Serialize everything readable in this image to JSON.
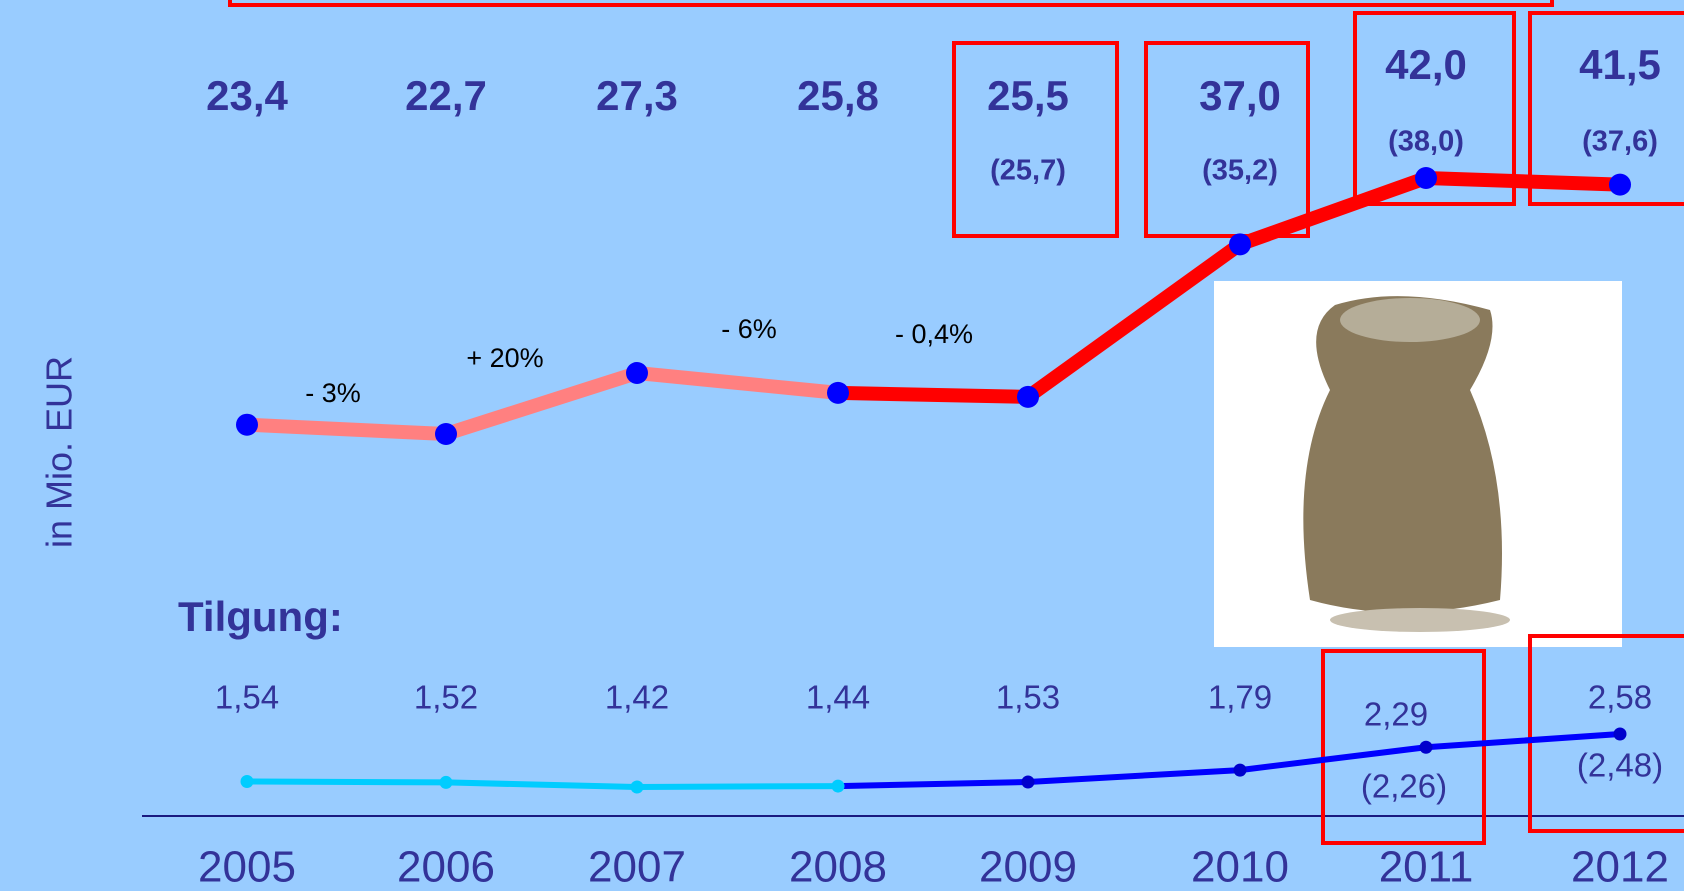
{
  "chart_data": {
    "type": "line",
    "y_label": "in Mio. EUR",
    "categories": [
      "2005",
      "2006",
      "2007",
      "2008",
      "2009",
      "2010",
      "2011",
      "2012"
    ],
    "series": [
      {
        "values": [
          23.4,
          22.7,
          27.3,
          25.8,
          25.5,
          37.0,
          42.0,
          41.5
        ],
        "value_labels": [
          "23,4",
          "22,7",
          "27,3",
          "25,8",
          "25,5",
          "37,0",
          "42,0",
          "41,5"
        ],
        "paren_values": [
          null,
          null,
          null,
          null,
          25.7,
          35.2,
          38.0,
          37.6
        ],
        "paren_labels": [
          null,
          null,
          null,
          null,
          "(25,7)",
          "(35,2)",
          "(38,0)",
          "(37,6)"
        ],
        "change_labels": [
          "- 3%",
          "+ 20%",
          "- 6%",
          "- 0,4%"
        ],
        "segment_colors": [
          "#ff8080",
          "#ff8080",
          "#ff8080",
          "#ff0000",
          "#ff0000",
          "#ff0000",
          "#ff0000"
        ],
        "point_color": "#0000ff"
      },
      {
        "label": "Tilgung:",
        "values": [
          1.54,
          1.52,
          1.42,
          1.44,
          1.53,
          1.79,
          2.29,
          2.58
        ],
        "value_labels": [
          "1,54",
          "1,52",
          "1,42",
          "1,44",
          "1,53",
          "1,79",
          "2,29",
          "2,58"
        ],
        "paren_values": [
          null,
          null,
          null,
          null,
          null,
          null,
          2.26,
          2.48
        ],
        "paren_labels": [
          null,
          null,
          null,
          null,
          null,
          null,
          "(2,26)",
          "(2,48)"
        ],
        "segment_colors": [
          "#00ccff",
          "#00ccff",
          "#00ccff",
          "#0000ff",
          "#0000ff",
          "#0000ff",
          "#0000ff"
        ],
        "point_colors": [
          "#00ccff",
          "#00ccff",
          "#00ccff",
          "#00ccff",
          "#0000cc",
          "#0000cc",
          "#0000cc",
          "#0000cc"
        ]
      }
    ]
  }
}
